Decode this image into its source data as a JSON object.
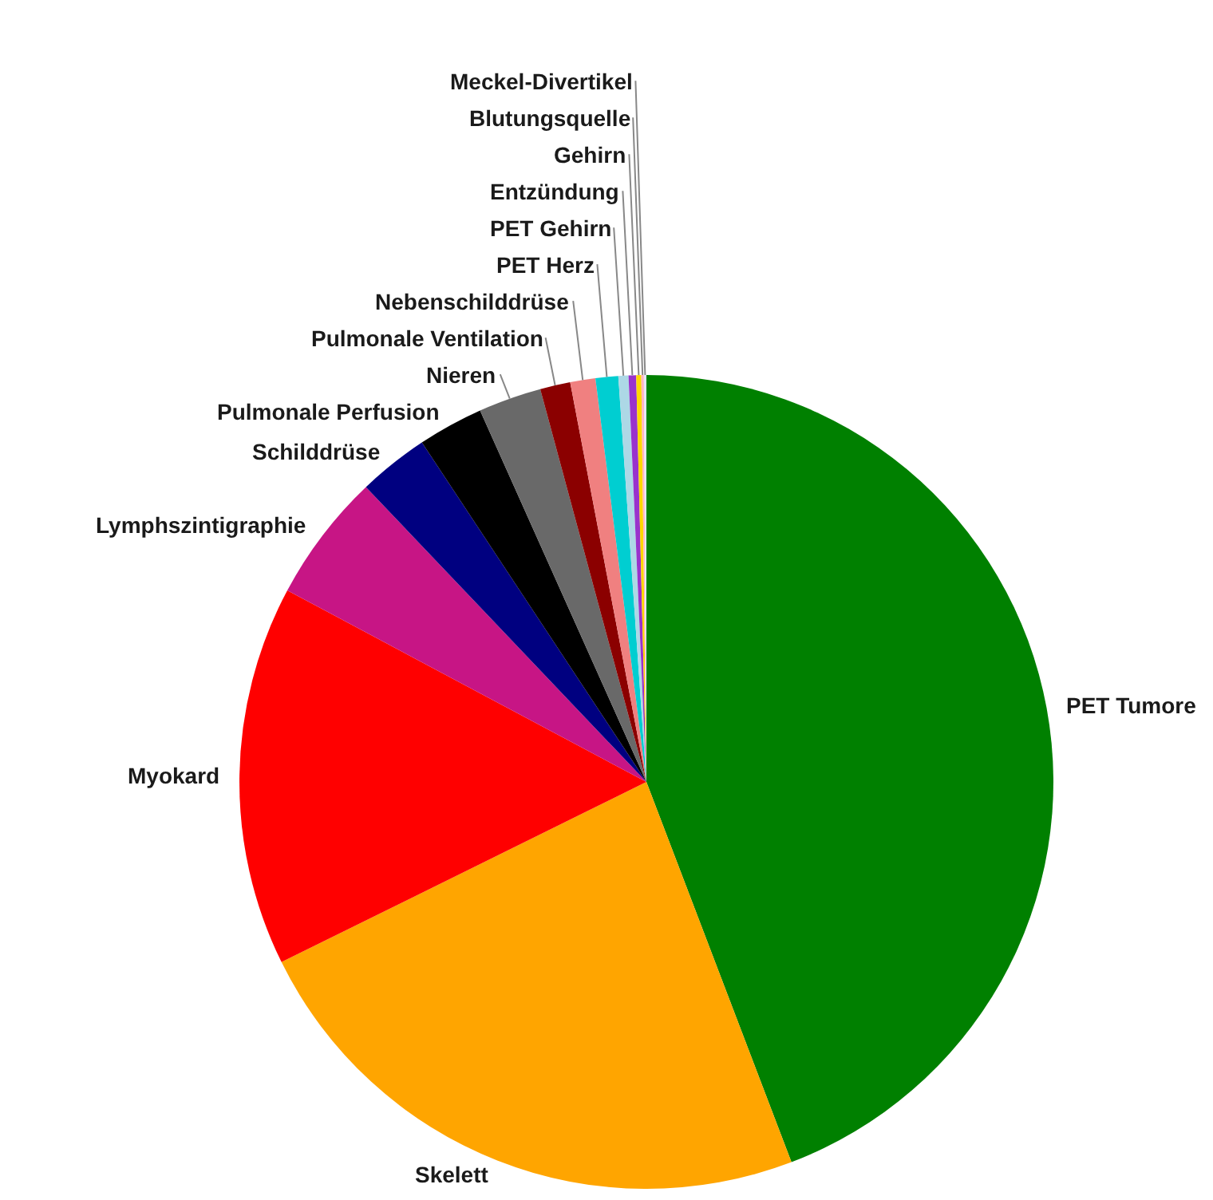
{
  "chart_data": {
    "type": "pie",
    "categories": [
      "PET Tumore",
      "Skelett",
      "Myokard",
      "Lymphszintigraphie",
      "Schilddrüse",
      "Pulmonale Perfusion",
      "Nieren",
      "Pulmonale Ventilation",
      "Nebenschilddrüse",
      "PET Herz",
      "PET Gehirn",
      "Entzündung",
      "Gehirn",
      "Blutungsquelle",
      "Meckel-Divertikel"
    ],
    "values": [
      44.2,
      23.5,
      15.1,
      5.1,
      2.8,
      2.6,
      2.5,
      1.2,
      1.0,
      0.9,
      0.4,
      0.3,
      0.2,
      0.1,
      0.1
    ],
    "colors": [
      "#008000",
      "#ffa500",
      "#ff0000",
      "#c71585",
      "#000080",
      "#000000",
      "#696969",
      "#8b0000",
      "#f08080",
      "#00ced1",
      "#add8e6",
      "#9932cc",
      "#ffd700",
      "#ffb6c1",
      "#e6e6fa"
    ],
    "legend": false
  }
}
